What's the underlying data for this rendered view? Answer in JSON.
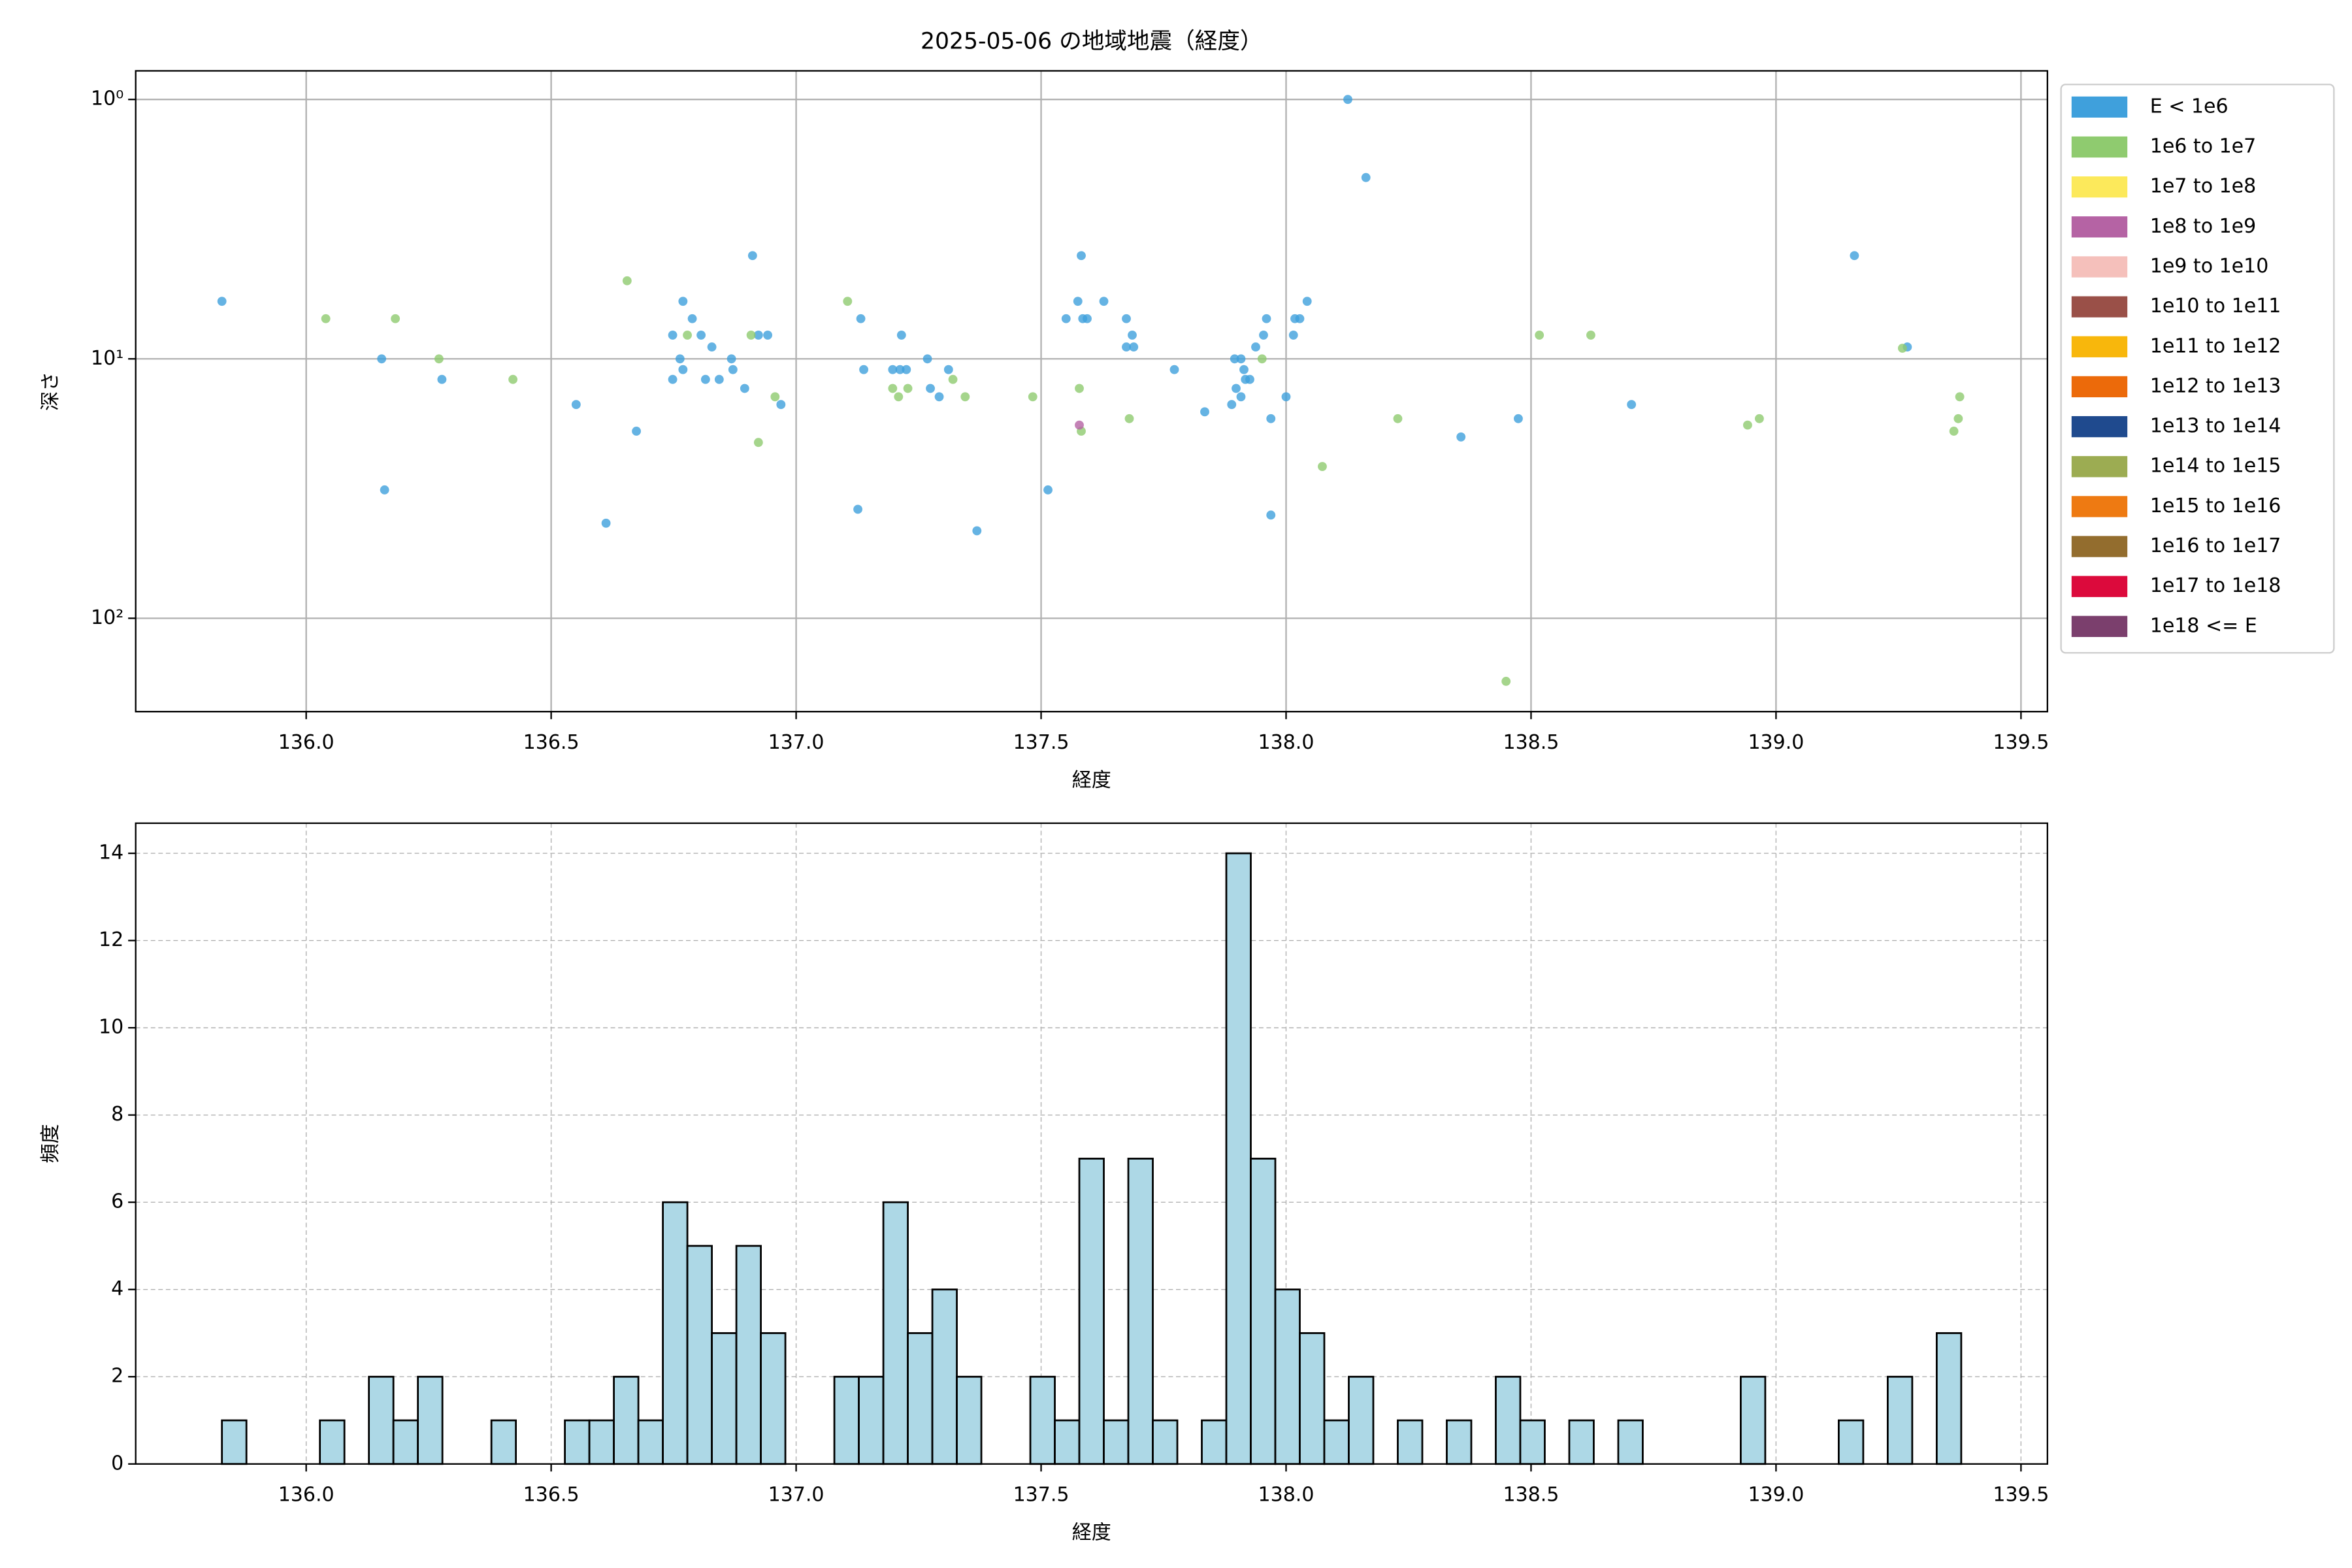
{
  "chart_data": [
    {
      "type": "scatter",
      "title": "2025-05-06 の地域地震（経度）",
      "xlabel": "経度",
      "ylabel": "深さ",
      "xlim": [
        135.652,
        139.554
      ],
      "xticks": [
        {
          "value": 136,
          "label": "136.0"
        },
        {
          "value": 136.5,
          "label": "136.5"
        },
        {
          "value": 137,
          "label": "137.0"
        },
        {
          "value": 137.5,
          "label": "137.5"
        },
        {
          "value": 138,
          "label": "138.0"
        },
        {
          "value": 138.5,
          "label": "138.5"
        },
        {
          "value": 139,
          "label": "139.0"
        },
        {
          "value": 139.5,
          "label": "139.5"
        }
      ],
      "ylim": [
        0.776,
        229
      ],
      "y_inverted": true,
      "y_log": true,
      "yticks": [
        {
          "value": 1,
          "label": "10⁰"
        },
        {
          "value": 10,
          "label": "10¹"
        },
        {
          "value": 100,
          "label": "10²"
        }
      ],
      "grid": true,
      "legend": "outside right",
      "series": [
        {
          "name": "E < 1e6",
          "color": "#3fa0dc",
          "x": [
            135.828,
            136.154,
            136.16,
            136.277,
            136.551,
            136.612,
            136.674,
            136.748,
            136.748,
            136.763,
            136.769,
            136.769,
            136.788,
            136.806,
            136.815,
            136.828,
            136.843,
            136.868,
            136.871,
            136.895,
            136.911,
            136.923,
            136.942,
            136.969,
            137.126,
            137.132,
            137.138,
            137.197,
            137.212,
            137.215,
            137.225,
            137.268,
            137.274,
            137.292,
            137.311,
            137.369,
            137.514,
            137.551,
            137.575,
            137.582,
            137.585,
            137.594,
            137.628,
            137.674,
            137.674,
            137.686,
            137.689,
            137.772,
            137.834,
            137.889,
            137.895,
            137.898,
            137.908,
            137.908,
            137.914,
            137.917,
            137.926,
            137.938,
            137.954,
            137.96,
            137.969,
            137.969,
            138.0,
            138.015,
            138.018,
            138.028,
            138.043,
            138.126,
            138.163,
            138.357,
            138.474,
            138.705,
            139.16,
            139.268
          ],
          "values": [
            6,
            10,
            32,
            12,
            15,
            43,
            19,
            8.1,
            12,
            10,
            6,
            11,
            7,
            8.1,
            12,
            9,
            12,
            10,
            11,
            13,
            4,
            8.1,
            8.1,
            15,
            38,
            7,
            11,
            11,
            11,
            8.1,
            11,
            10,
            13,
            14,
            11,
            46,
            32,
            7,
            6,
            4,
            7,
            7,
            6,
            7,
            9,
            8.1,
            9,
            11,
            16,
            15,
            10,
            13,
            10,
            14,
            11,
            12,
            12,
            9,
            8.1,
            7,
            17,
            40,
            14,
            8.1,
            7,
            7,
            6,
            1,
            2,
            20,
            17,
            15,
            4,
            9
          ]
        },
        {
          "name": "1e6 to 1e7",
          "color": "#8fcb6f",
          "x": [
            136.04,
            136.182,
            136.271,
            136.422,
            136.655,
            136.778,
            136.908,
            136.923,
            136.957,
            137.105,
            137.197,
            137.209,
            137.228,
            137.32,
            137.345,
            137.483,
            137.578,
            137.582,
            137.68,
            137.951,
            138.074,
            138.228,
            138.449,
            138.517,
            138.622,
            138.942,
            138.966,
            139.258,
            139.363,
            139.372,
            139.375
          ],
          "values": [
            7,
            7,
            10,
            12,
            5,
            8.1,
            8.1,
            21,
            14,
            6,
            13,
            14,
            13,
            12,
            14,
            14,
            13,
            19,
            17,
            10,
            26,
            17,
            175,
            8.1,
            8.1,
            18,
            17,
            9.1,
            19,
            17,
            14
          ]
        },
        {
          "name": "1e7 to 1e8",
          "color": "#fce95b",
          "x": [],
          "values": []
        },
        {
          "name": "1e8 to 1e9",
          "color": "#b563a4",
          "x": [
            137.578
          ],
          "values": [
            18
          ]
        },
        {
          "name": "1e9 to 1e10",
          "color": "#f5c0bb",
          "x": [],
          "values": []
        },
        {
          "name": "1e10 to 1e11",
          "color": "#9a5048",
          "x": [],
          "values": []
        },
        {
          "name": "1e11 to 1e12",
          "color": "#f8b70c",
          "x": [],
          "values": []
        },
        {
          "name": "1e12 to 1e13",
          "color": "#ec6a0a",
          "x": [],
          "values": []
        },
        {
          "name": "1e13 to 1e14",
          "color": "#1f4a8e",
          "x": [],
          "values": []
        },
        {
          "name": "1e14 to 1e15",
          "color": "#9cac52",
          "x": [],
          "values": []
        },
        {
          "name": "1e15 to 1e16",
          "color": "#ee7a12",
          "x": [],
          "values": []
        },
        {
          "name": "1e16 to 1e17",
          "color": "#936d2e",
          "x": [],
          "values": []
        },
        {
          "name": "1e17 to 1e18",
          "color": "#dc0a3c",
          "x": [],
          "values": []
        },
        {
          "name": "1e18 <= E",
          "color": "#7b3f6d",
          "x": [],
          "values": []
        }
      ]
    },
    {
      "type": "histogram",
      "xlabel": "経度",
      "ylabel": "頻度",
      "color": "#add8e6",
      "edgecolor": "#000000",
      "xlim": [
        135.652,
        139.554
      ],
      "xticks": [
        {
          "value": 136,
          "label": "136.0"
        },
        {
          "value": 136.5,
          "label": "136.5"
        },
        {
          "value": 137,
          "label": "137.0"
        },
        {
          "value": 137.5,
          "label": "137.5"
        },
        {
          "value": 138,
          "label": "138.0"
        },
        {
          "value": 138.5,
          "label": "138.5"
        },
        {
          "value": 139,
          "label": "139.0"
        },
        {
          "value": 139.5,
          "label": "139.5"
        }
      ],
      "ylim": [
        0,
        14.69
      ],
      "yticks": [
        0,
        2,
        4,
        6,
        8,
        10,
        12,
        14
      ],
      "grid": true,
      "grid_style": "dashed",
      "bins": [
        135.828,
        135.878,
        135.928,
        135.978,
        136.028,
        136.078,
        136.128,
        136.178,
        136.228,
        136.278,
        136.328,
        136.378,
        136.428,
        136.478,
        136.528,
        136.578,
        136.628,
        136.678,
        136.728,
        136.778,
        136.828,
        136.878,
        136.928,
        136.978,
        137.028,
        137.078,
        137.128,
        137.178,
        137.228,
        137.278,
        137.328,
        137.378,
        137.428,
        137.478,
        137.528,
        137.578,
        137.628,
        137.678,
        137.728,
        137.778,
        137.828,
        137.878,
        137.928,
        137.978,
        138.028,
        138.078,
        138.128,
        138.178,
        138.228,
        138.278,
        138.328,
        138.378,
        138.428,
        138.478,
        138.528,
        138.578,
        138.628,
        138.678,
        138.728,
        138.778,
        138.828,
        138.878,
        138.928,
        138.978,
        139.028,
        139.078,
        139.128,
        139.178,
        139.228,
        139.278,
        139.328,
        139.378
      ],
      "values": [
        1,
        0,
        0,
        0,
        1,
        0,
        2,
        1,
        2,
        0,
        0,
        1,
        0,
        0,
        1,
        1,
        2,
        1,
        6,
        5,
        3,
        5,
        3,
        0,
        0,
        2,
        2,
        6,
        3,
        4,
        2,
        0,
        0,
        2,
        1,
        7,
        1,
        7,
        1,
        0,
        1,
        14,
        7,
        4,
        3,
        1,
        2,
        0,
        1,
        0,
        1,
        0,
        2,
        1,
        0,
        1,
        0,
        1,
        0,
        0,
        0,
        0,
        2,
        0,
        0,
        0,
        1,
        0,
        2,
        0,
        3
      ]
    }
  ]
}
